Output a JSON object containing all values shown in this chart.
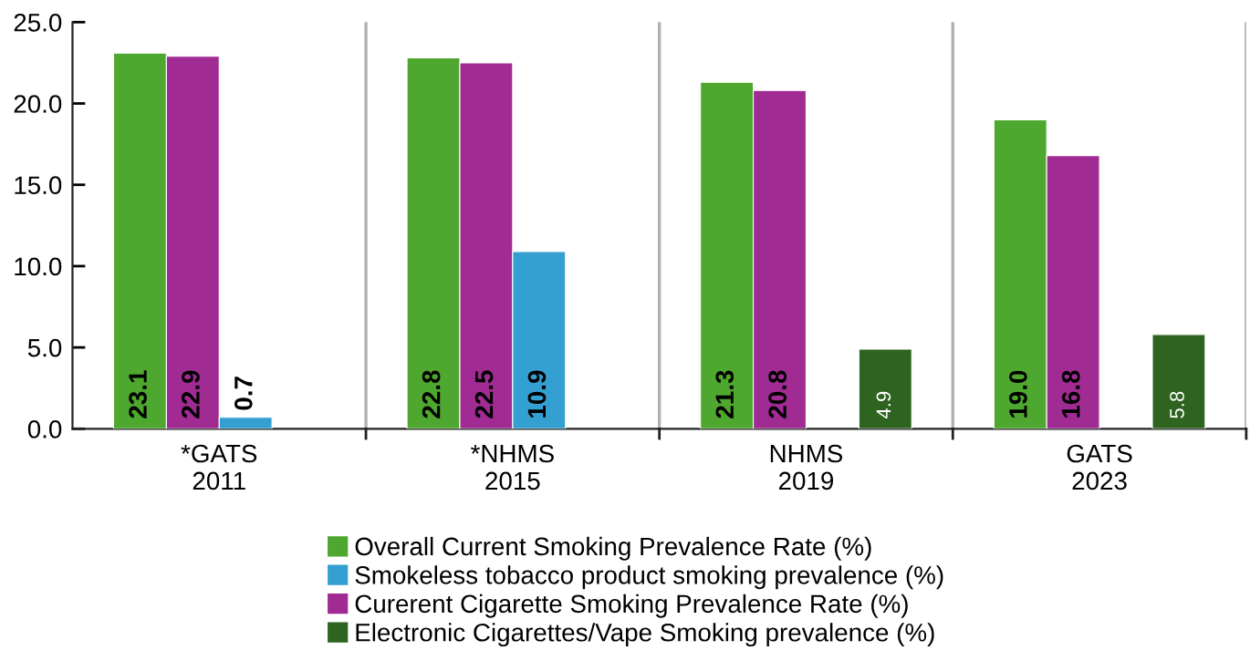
{
  "chart_data": {
    "type": "bar",
    "categories": [
      "*GATS\n2011",
      "*NHMS\n2015",
      "NHMS\n2019",
      "GATS\n2023"
    ],
    "series": [
      {
        "name": "Overall Current Smoking Prevalence Rate (%)",
        "color": "#4ea72e",
        "values": [
          23.1,
          22.8,
          21.3,
          19.0
        ],
        "value_labels": [
          "23.1",
          "22.8",
          "21.3",
          "19.0"
        ]
      },
      {
        "name": "Curerent Cigarette Smoking Prevalence Rate (%)",
        "color": "#a02b93",
        "values": [
          22.9,
          22.5,
          20.8,
          16.8
        ]
      },
      {
        "name": "Smokeless tobacco product smoking prevalence (%)",
        "color": "#33a0d1",
        "values": [
          0.7,
          10.9,
          null,
          null
        ]
      },
      {
        "name": "Electronic Cigarettes/Vape Smoking prevalence (%)",
        "color": "#2e6320",
        "values": [
          null,
          null,
          4.9,
          5.8
        ]
      }
    ],
    "ylim": [
      0,
      25
    ],
    "yticks": [
      {
        "value": 0,
        "label": "0.0"
      },
      {
        "value": 5,
        "label": "5.0"
      },
      {
        "value": 10,
        "label": "10.0"
      },
      {
        "value": 15,
        "label": "15.0"
      },
      {
        "value": 20,
        "label": "20.0"
      },
      {
        "value": 25,
        "label": "25.0"
      }
    ],
    "grid": "x",
    "legend": "bottom",
    "data_labels": true
  }
}
